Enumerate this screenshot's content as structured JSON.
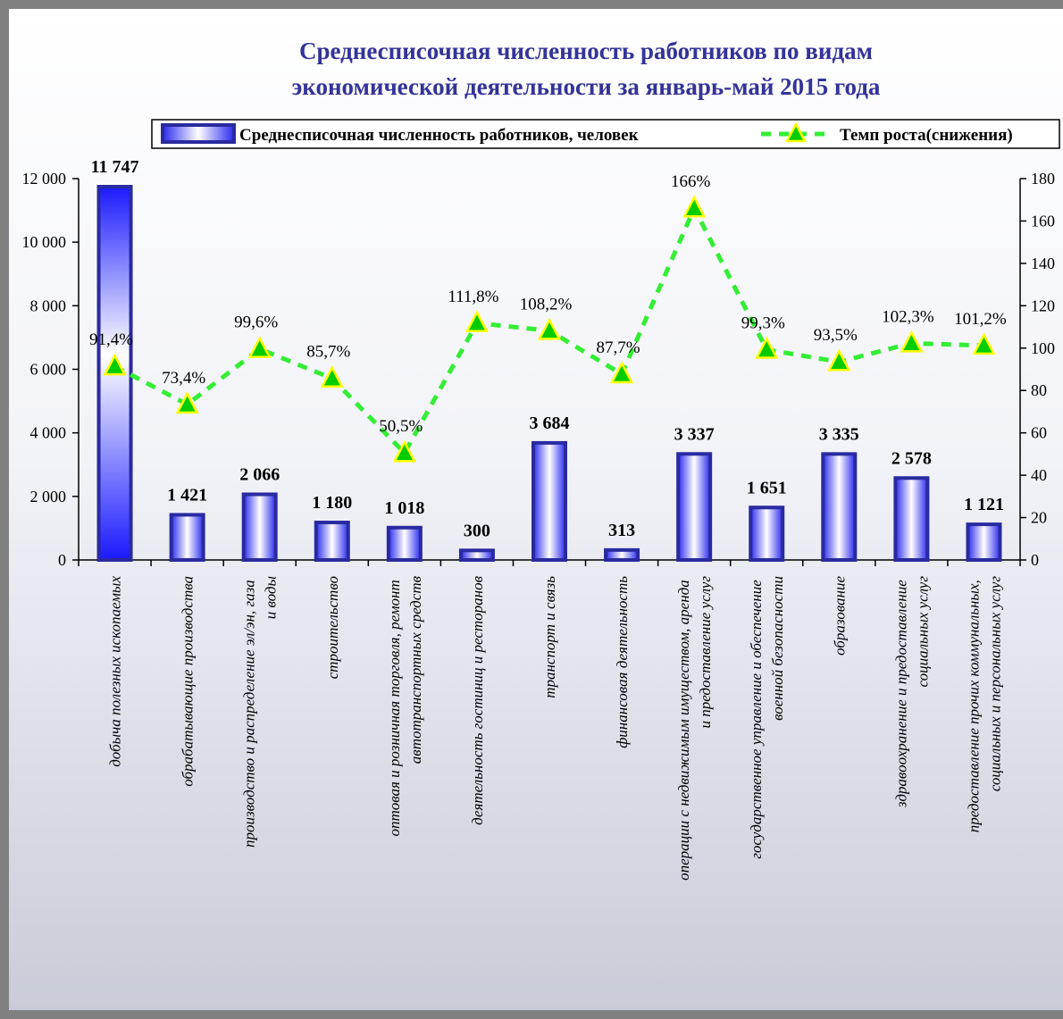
{
  "chart_data": {
    "type": "bar-line",
    "title": [
      "Среднесписочная численность работников по видам",
      "экономической деятельности за январь-май 2015 года"
    ],
    "categories": [
      "добыча полезных ископаемых",
      "обрабатывающие производства",
      "производство и распределение эл/эн, газа и воды",
      "строительство",
      "оптовая и розничная торговля, ремонт автотранспортных средств",
      "деятельность гостиниц и ресторанов",
      "транспорт и связь",
      "финансовая деятельность",
      "операции с недвижимым имуществом, аренда и предоставление услуг",
      "государственное управление и обеспечение военной безопасности",
      "образование",
      "здравоохранение и предоставление социальных услуг",
      "предоставление прочих коммунальных, социальных и персональных услуг"
    ],
    "series": [
      {
        "name": "Среднесписочная численность работников, человек",
        "type": "bar",
        "color": "#2a2aa0",
        "values": [
          11747,
          1421,
          2066,
          1180,
          1018,
          300,
          3684,
          313,
          3337,
          1651,
          3335,
          2578,
          1121
        ],
        "value_labels": [
          "11 747",
          "1 421",
          "2 066",
          "1 180",
          "1 018",
          "300",
          "3 684",
          "313",
          "3 337",
          "1 651",
          "3 335",
          "2 578",
          "1 121"
        ]
      },
      {
        "name": "Темп роста(снижения)",
        "type": "line",
        "axis": "y2",
        "color": "#33ee33",
        "values": [
          91.4,
          73.4,
          99.6,
          85.7,
          50.5,
          111.8,
          108.2,
          87.7,
          166,
          99.3,
          93.5,
          102.3,
          101.2
        ],
        "value_labels": [
          "91,4%",
          "73,4%",
          "99,6%",
          "85,7%",
          "50,5%",
          "111,8%",
          "108,2%",
          "87,7%",
          "166%",
          "99,3%",
          "93,5%",
          "102,3%",
          "101,2%"
        ]
      }
    ],
    "ylim": [
      0,
      12000
    ],
    "yticks": [
      0,
      {
        "value": 2000,
        "label": "2 000"
      },
      {
        "value": 4000,
        "label": "4 000"
      },
      {
        "value": 6000,
        "label": "6 000"
      },
      {
        "value": 8000,
        "label": "8 000"
      },
      {
        "value": 10000,
        "label": "10 000"
      },
      {
        "value": 12000,
        "label": "12 000"
      }
    ],
    "y2lim": [
      0,
      180
    ],
    "y2ticks": [
      0,
      20,
      40,
      60,
      80,
      100,
      120,
      140,
      160,
      180
    ],
    "legend": "top"
  }
}
